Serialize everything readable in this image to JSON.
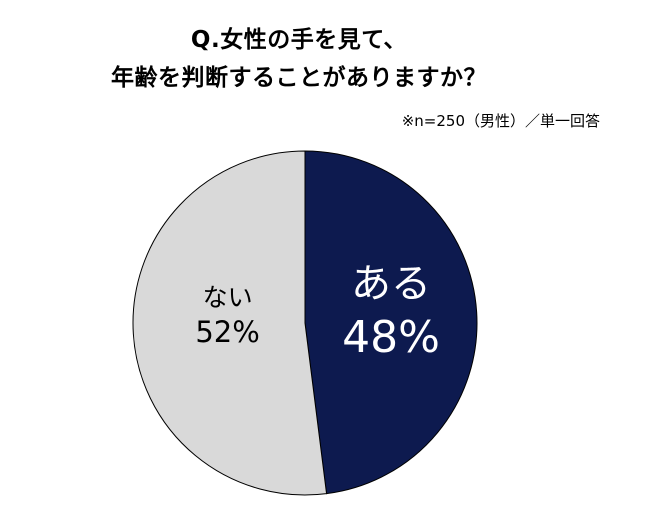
{
  "chart_data": {
    "type": "pie",
    "title_lines": [
      "Q.女性の手を見て、",
      "年齢を判断することがありますか？"
    ],
    "note": "※n=250（男性）／単一回答",
    "slices": [
      {
        "label": "ある",
        "value": 48,
        "value_label": "48%",
        "color": "#0d1a4f",
        "text_color": "#ffffff"
      },
      {
        "label": "ない",
        "value": 52,
        "value_label": "52%",
        "color": "#d9d9d9",
        "text_color": "#000000"
      }
    ],
    "start": "12 o'clock",
    "direction": "clockwise"
  }
}
